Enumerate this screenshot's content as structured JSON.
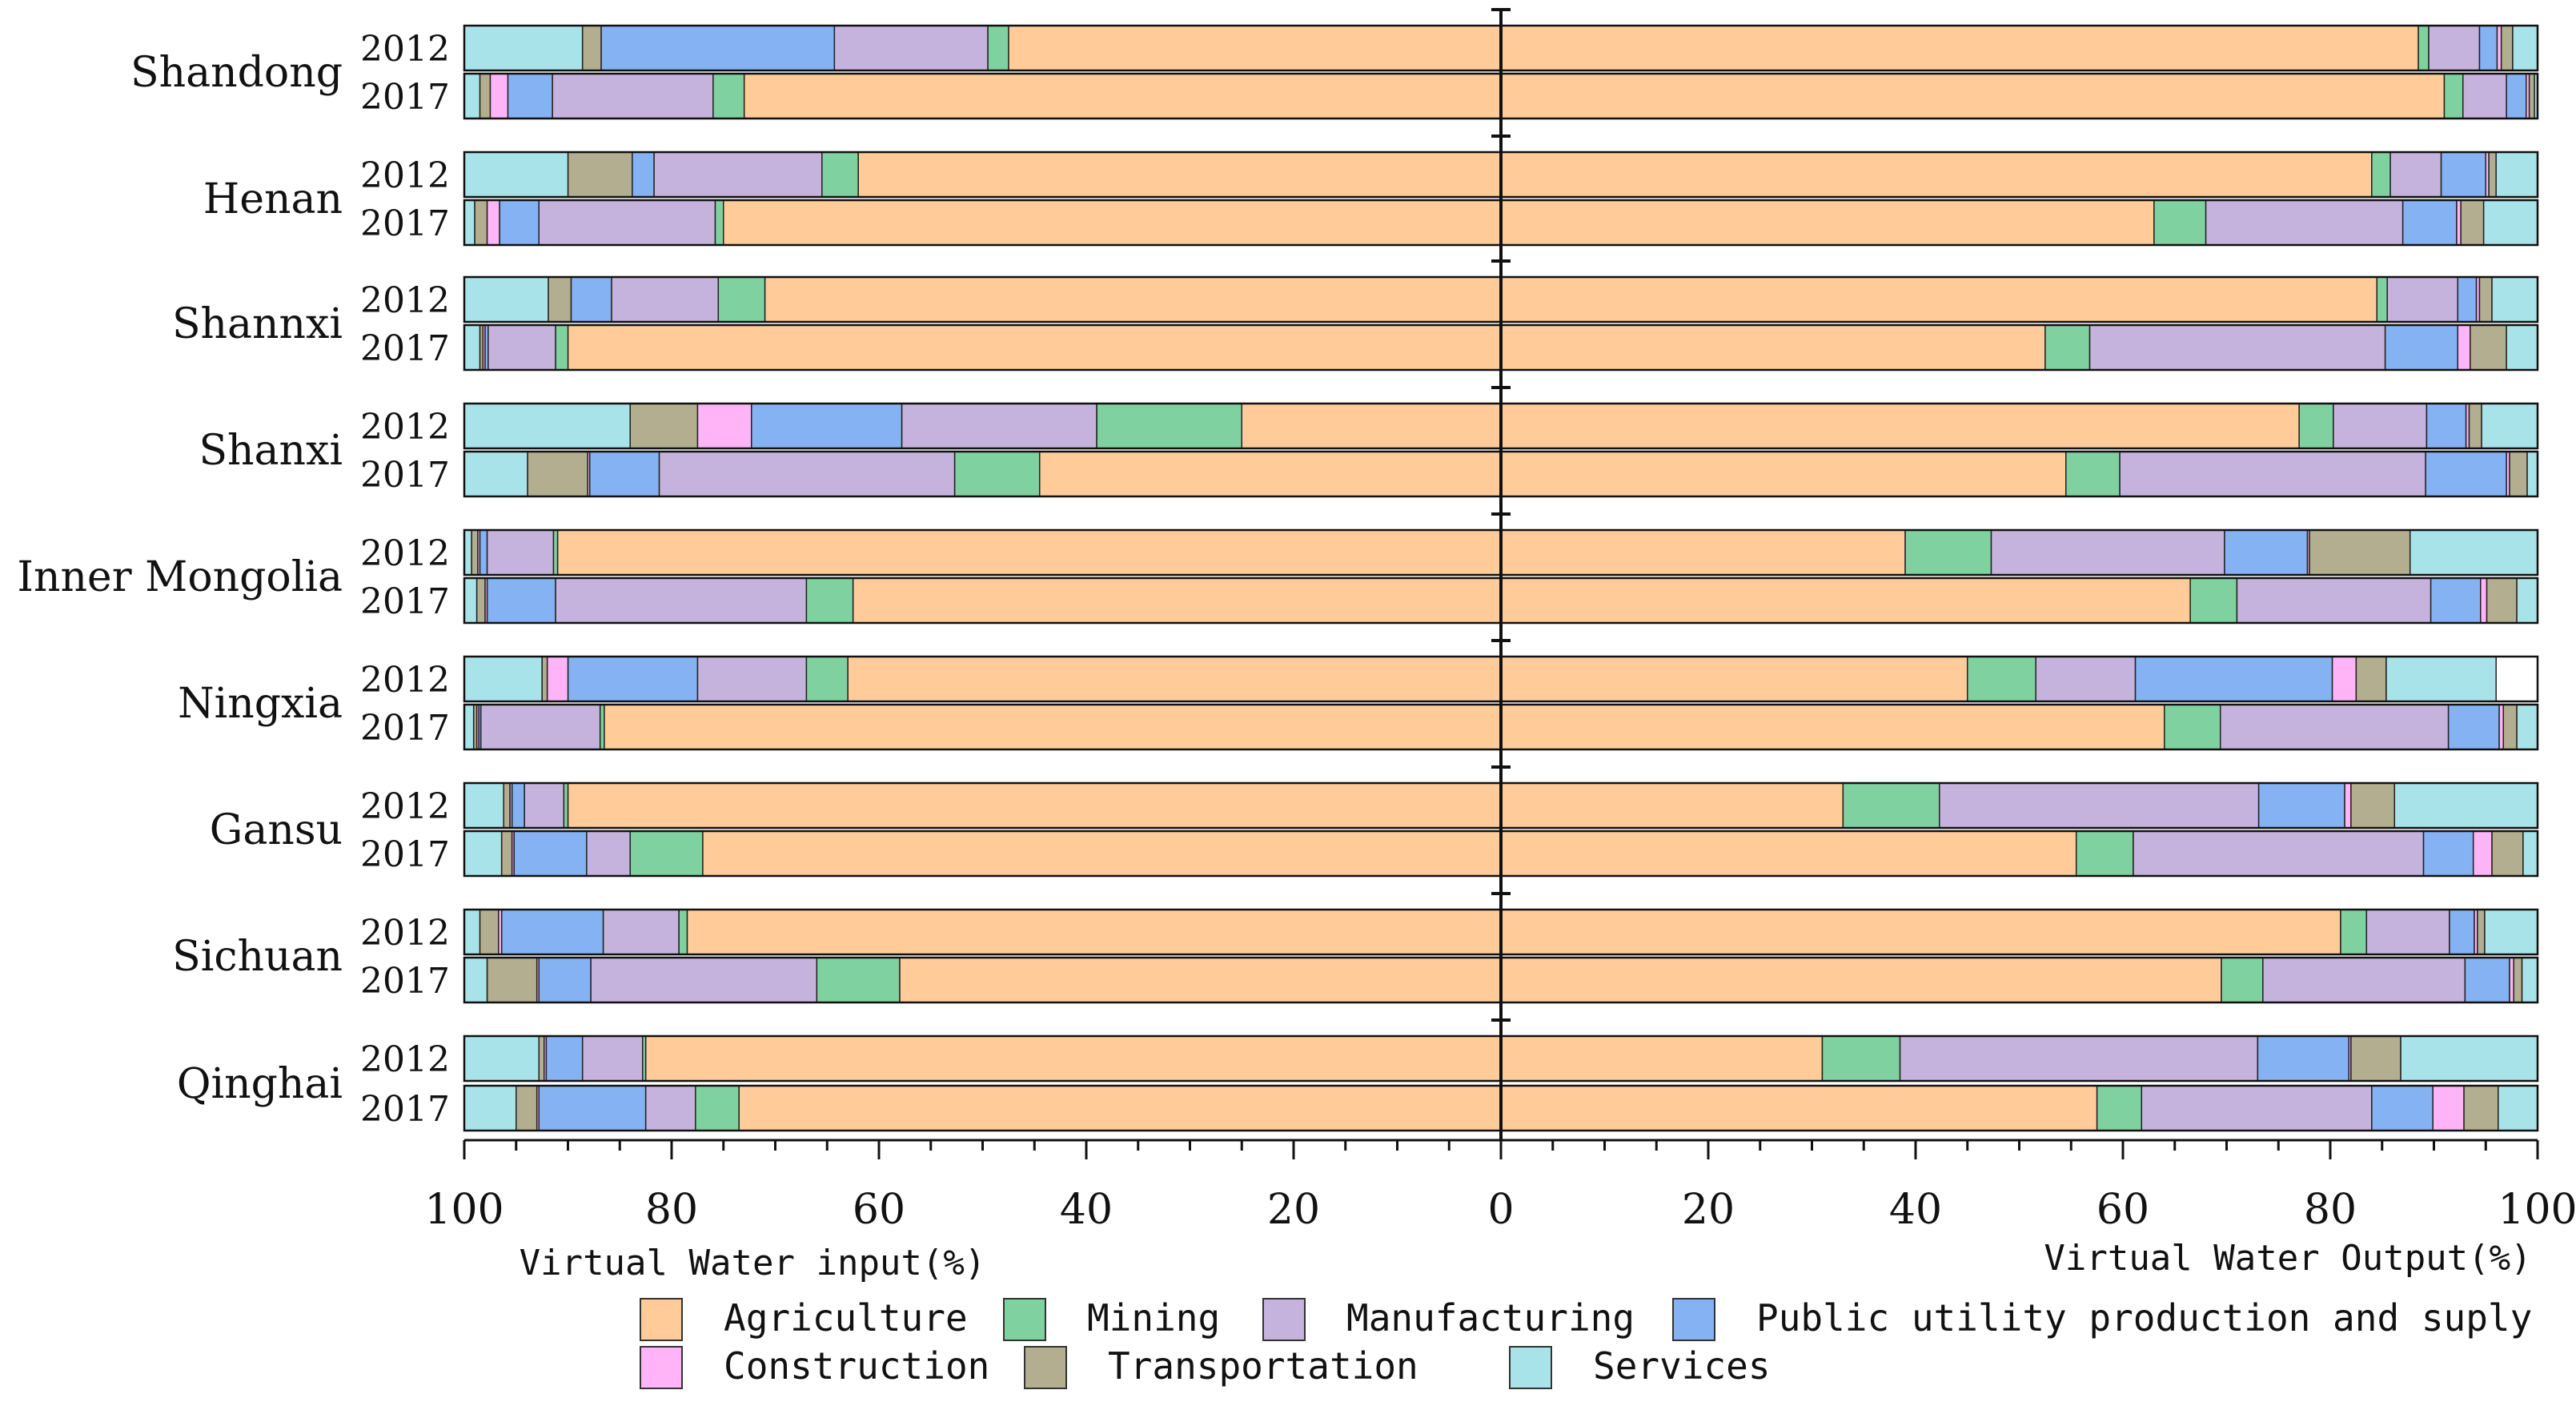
{
  "chart_data": {
    "type": "bar",
    "subtype": "diverging-stacked-horizontal",
    "left_axis_label": "Virtual Water input(%)",
    "right_axis_label": "Virtual Water Output(%)",
    "x_ticks_left": [
      "100",
      "80",
      "60",
      "40",
      "20",
      "0"
    ],
    "x_ticks_right": [
      "20",
      "40",
      "60",
      "80",
      "100"
    ],
    "xlim_each_side": [
      0,
      100
    ],
    "legend_position": "bottom",
    "sectors": [
      {
        "name": "Agriculture",
        "color": "#FFCC99"
      },
      {
        "name": "Mining",
        "color": "#80D1A0"
      },
      {
        "name": "Manufacturing",
        "color": "#C6B3DD"
      },
      {
        "name": "Public utility production and suply",
        "color": "#84B2F2"
      },
      {
        "name": "Construction",
        "color": "#FFB4F8"
      },
      {
        "name": "Transportation",
        "color": "#B3AE8F"
      },
      {
        "name": "Services",
        "color": "#A8E3EA"
      }
    ],
    "provinces": [
      {
        "name": "Shandong",
        "rows": [
          {
            "year": "2012",
            "input": [
              47.5,
              2.0,
              14.8,
              22.5,
              0.0,
              1.8,
              11.4
            ],
            "output": [
              88.5,
              1.0,
              4.9,
              1.7,
              0.4,
              1.1,
              2.4
            ]
          },
          {
            "year": "2017",
            "input": [
              73.0,
              3.0,
              15.5,
              4.3,
              1.7,
              1.0,
              1.5
            ],
            "output": [
              91.0,
              1.8,
              4.2,
              1.9,
              0.3,
              0.5,
              0.3
            ]
          }
        ]
      },
      {
        "name": "Henan",
        "rows": [
          {
            "year": "2012",
            "input": [
              62.0,
              3.5,
              16.2,
              2.1,
              0.0,
              6.2,
              10.0
            ],
            "output": [
              84.0,
              1.8,
              4.9,
              4.3,
              0.3,
              0.7,
              4.0
            ]
          },
          {
            "year": "2017",
            "input": [
              75.0,
              0.8,
              17.0,
              3.8,
              1.2,
              1.2,
              1.0
            ],
            "output": [
              63.0,
              5.0,
              19.0,
              5.2,
              0.4,
              2.2,
              5.2
            ]
          }
        ]
      },
      {
        "name": "Shannxi",
        "rows": [
          {
            "year": "2012",
            "input": [
              71.0,
              4.5,
              10.3,
              3.9,
              0.0,
              2.2,
              8.1
            ],
            "output": [
              84.5,
              1.0,
              6.8,
              1.8,
              0.3,
              1.2,
              4.4
            ]
          },
          {
            "year": "2017",
            "input": [
              90.0,
              1.2,
              6.5,
              0.3,
              0.2,
              0.3,
              1.5
            ],
            "output": [
              52.5,
              4.3,
              28.5,
              7.0,
              1.2,
              3.5,
              3.0
            ]
          }
        ]
      },
      {
        "name": "Shanxi",
        "rows": [
          {
            "year": "2012",
            "input": [
              25.0,
              14.0,
              18.8,
              14.5,
              5.2,
              6.5,
              16.0
            ],
            "output": [
              77.0,
              3.3,
              9.0,
              3.8,
              0.3,
              1.2,
              5.4
            ]
          },
          {
            "year": "2017",
            "input": [
              44.5,
              8.2,
              28.5,
              6.7,
              0.2,
              5.8,
              6.1
            ],
            "output": [
              54.5,
              5.2,
              29.5,
              7.8,
              0.3,
              1.7,
              1.0
            ]
          }
        ]
      },
      {
        "name": "Inner Mongolia",
        "rows": [
          {
            "year": "2012",
            "input": [
              91.0,
              0.4,
              6.4,
              0.7,
              0.2,
              0.6,
              0.7
            ],
            "output": [
              39.0,
              8.3,
              22.5,
              8.0,
              0.2,
              9.7,
              12.3
            ]
          },
          {
            "year": "2017",
            "input": [
              62.5,
              4.5,
              24.2,
              6.6,
              0.2,
              0.8,
              1.2
            ],
            "output": [
              66.5,
              4.5,
              18.7,
              4.8,
              0.6,
              2.9,
              2.0
            ]
          }
        ]
      },
      {
        "name": "Ningxia",
        "rows": [
          {
            "year": "2012",
            "input": [
              63.0,
              4.0,
              10.5,
              12.5,
              2.0,
              0.5,
              7.5
            ],
            "output": [
              45.0,
              6.6,
              9.6,
              19.0,
              2.3,
              2.9,
              10.6
            ]
          },
          {
            "year": "2017",
            "input": [
              86.5,
              0.4,
              11.5,
              0.2,
              0.2,
              0.3,
              0.9
            ],
            "output": [
              64.0,
              5.4,
              22.0,
              4.9,
              0.4,
              1.3,
              2.0
            ]
          }
        ]
      },
      {
        "name": "Gansu",
        "rows": [
          {
            "year": "2012",
            "input": [
              90.0,
              0.4,
              3.8,
              1.2,
              0.2,
              0.6,
              3.8
            ],
            "output": [
              33.0,
              9.3,
              30.8,
              8.3,
              0.6,
              4.2,
              13.8
            ]
          },
          {
            "year": "2017",
            "input": [
              77.0,
              7.0,
              4.2,
              7.0,
              0.2,
              1.0,
              3.6
            ],
            "output": [
              55.5,
              5.5,
              28.0,
              4.8,
              1.8,
              3.0,
              1.4
            ]
          }
        ]
      },
      {
        "name": "Sichuan",
        "rows": [
          {
            "year": "2012",
            "input": [
              78.5,
              0.8,
              7.3,
              9.8,
              0.3,
              1.8,
              1.5
            ],
            "output": [
              81.0,
              2.5,
              8.0,
              2.4,
              0.3,
              0.7,
              5.1
            ]
          },
          {
            "year": "2017",
            "input": [
              58.0,
              8.0,
              21.8,
              5.0,
              0.2,
              4.8,
              2.2
            ],
            "output": [
              69.5,
              4.0,
              19.5,
              4.3,
              0.4,
              0.8,
              1.5
            ]
          }
        ]
      },
      {
        "name": "Qinghai",
        "rows": [
          {
            "year": "2012",
            "input": [
              82.5,
              0.3,
              5.8,
              3.5,
              0.2,
              0.5,
              7.2
            ],
            "output": [
              31.0,
              7.5,
              34.5,
              8.8,
              0.2,
              4.8,
              13.2
            ]
          },
          {
            "year": "2017",
            "input": [
              73.5,
              4.2,
              4.8,
              10.3,
              0.2,
              2.0,
              5.0
            ],
            "output": [
              57.5,
              4.3,
              22.2,
              5.9,
              3.0,
              3.3,
              3.8
            ]
          }
        ]
      }
    ]
  }
}
